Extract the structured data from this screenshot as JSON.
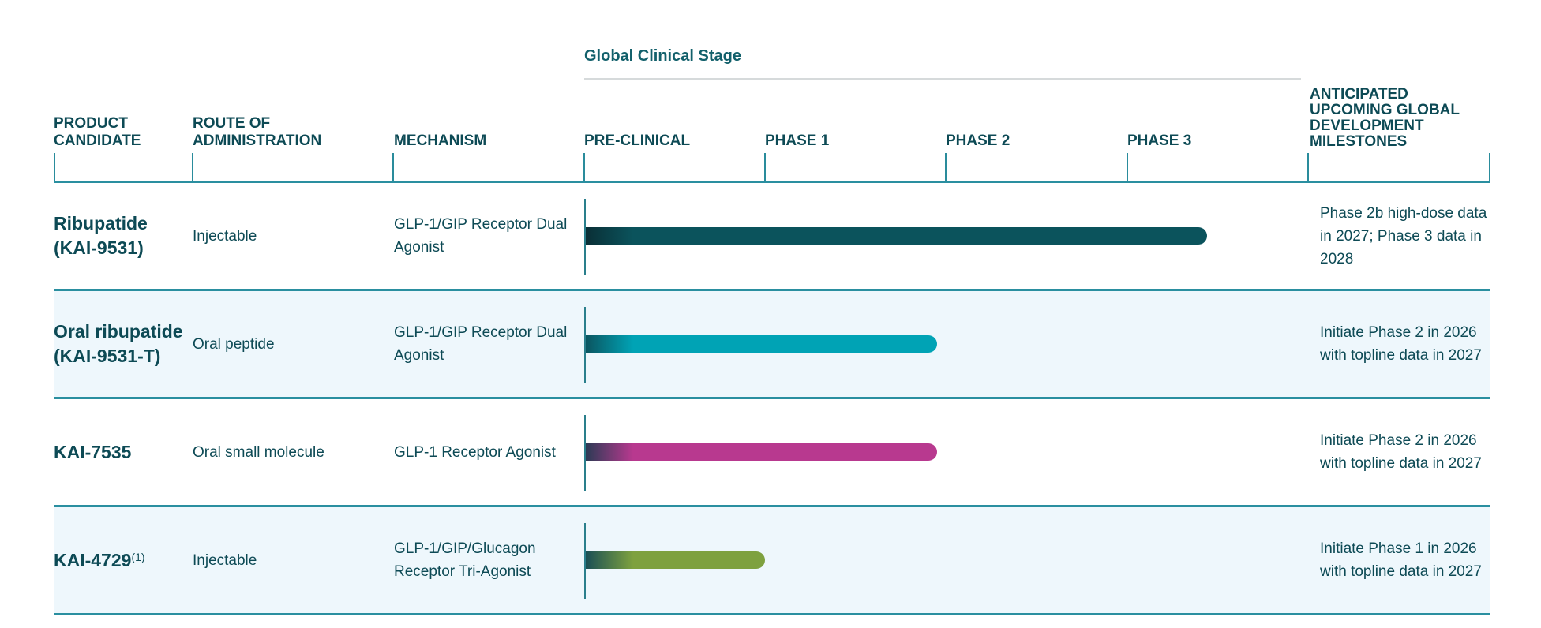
{
  "stage_header": "Global Clinical Stage",
  "columns": {
    "product": "PRODUCT CANDIDATE",
    "route": "ROUTE OF ADMINISTRATION",
    "mechanism": "MECHANISM",
    "milestones": "ANTICIPATED UPCOMING GLOBAL DEVELOPMENT MILESTONES"
  },
  "stages": [
    "PRE-CLINICAL",
    "PHASE 1",
    "PHASE 2",
    "PHASE 3"
  ],
  "colors": {
    "text": "#0d4a55",
    "rule": "#2a8fa0",
    "alt_row": "#eef7fc"
  },
  "rows": [
    {
      "name": "Ribupatide (KAI-9531)",
      "sup": "",
      "route": "Injectable",
      "mechanism": "GLP-1/GIP Receptor Dual Agonist",
      "progress_stages": 3.44,
      "color": "#0b535c",
      "start_color": "#0a2f36",
      "milestone": "Phase 2b high-dose data in 2027; Phase 3 data in 2028"
    },
    {
      "name": "Oral ribupatide (KAI-9531-T)",
      "sup": "",
      "route": "Oral peptide",
      "mechanism": "GLP-1/GIP Receptor Dual Agonist",
      "progress_stages": 1.95,
      "color": "#00a3b5",
      "start_color": "#0b5560",
      "milestone": "Initiate Phase 2 in 2026 with topline data in 2027"
    },
    {
      "name": "KAI-7535",
      "sup": "",
      "route": "Oral small molecule",
      "mechanism": "GLP-1 Receptor Agonist",
      "progress_stages": 1.95,
      "color": "#b8398f",
      "start_color": "#2c3a55",
      "milestone": "Initiate Phase 2 in 2026 with topline data in 2027"
    },
    {
      "name": "KAI-4729",
      "sup": "(1)",
      "route": "Injectable",
      "mechanism": "GLP-1/GIP/Glucagon Receptor Tri-Agonist",
      "progress_stages": 1.0,
      "color": "#7ea13f",
      "start_color": "#1a4f55",
      "milestone": "Initiate Phase 1 in 2026 with topline data in 2027"
    }
  ]
}
